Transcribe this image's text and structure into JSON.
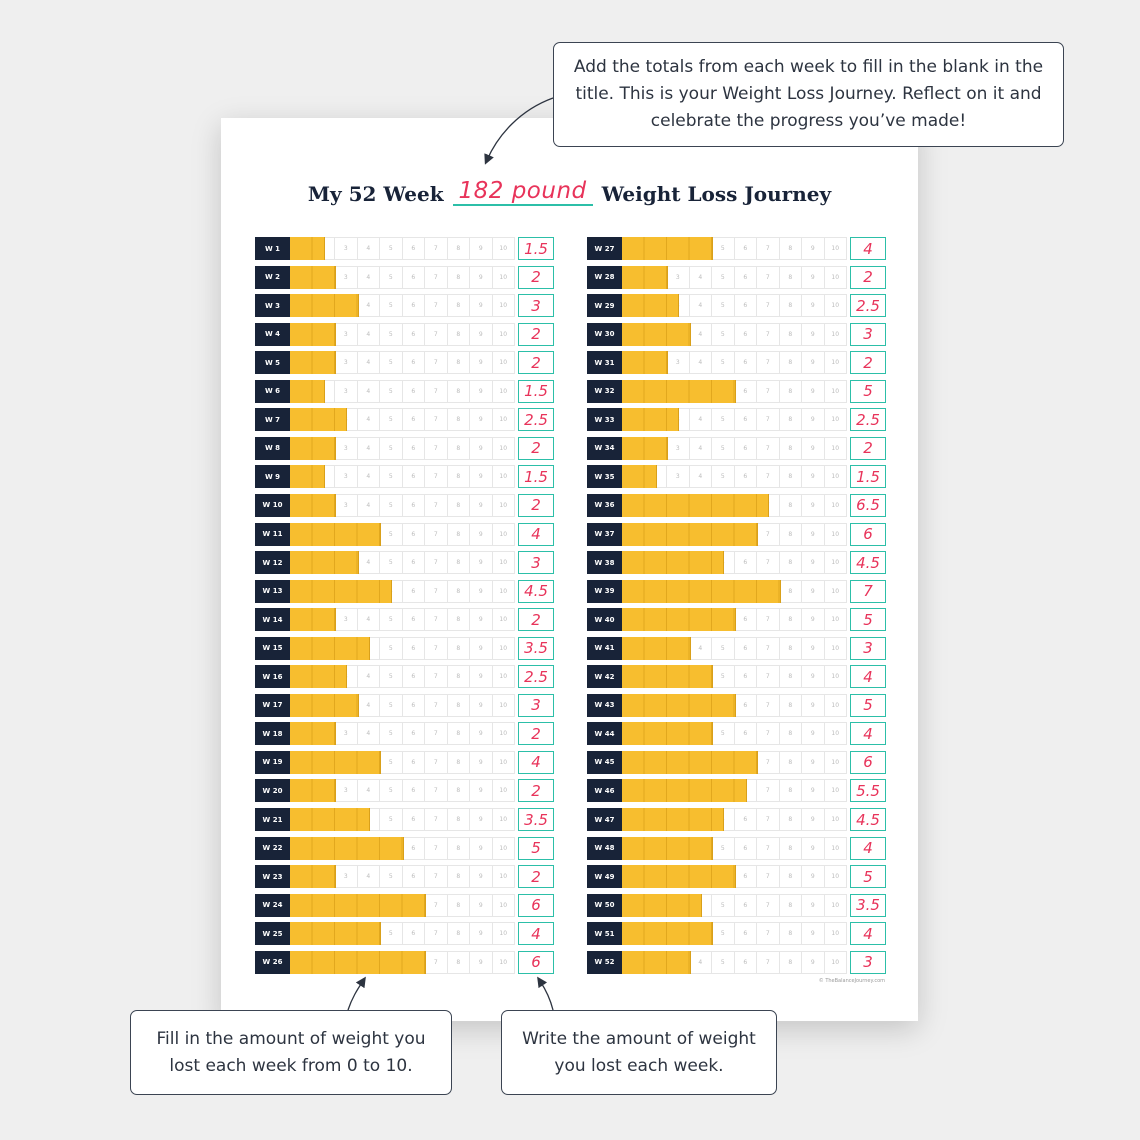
{
  "title": {
    "prefix": "My 52 Week",
    "blank_value": "182 pound",
    "suffix": "Weight Loss Journey"
  },
  "callouts": {
    "top": "Add the totals from each week to fill in the blank in the title. This is your Weight Loss Journey. Reflect on it and celebrate the progress you’ve made!",
    "bottom_left": "Fill in the amount of weight you lost each week from 0 to 10.",
    "bottom_right": "Write the amount of weight you lost each week."
  },
  "copyright": "© TheBalanceJourney.com",
  "chart_data": {
    "type": "bar",
    "scale_ticks": [
      "1",
      "2",
      "3",
      "4",
      "5",
      "6",
      "7",
      "8",
      "9",
      "10"
    ],
    "xlim": [
      0,
      10
    ],
    "categories": [
      "W 1",
      "W 2",
      "W 3",
      "W 4",
      "W 5",
      "W 6",
      "W 7",
      "W 8",
      "W 9",
      "W 10",
      "W 11",
      "W 12",
      "W 13",
      "W 14",
      "W 15",
      "W 16",
      "W 17",
      "W 18",
      "W 19",
      "W 20",
      "W 21",
      "W 22",
      "W 23",
      "W 24",
      "W 25",
      "W 26",
      "W 27",
      "W 28",
      "W 29",
      "W 30",
      "W 31",
      "W 32",
      "W 33",
      "W 34",
      "W 35",
      "W 36",
      "W 37",
      "W 38",
      "W 39",
      "W 40",
      "W 41",
      "W 42",
      "W 43",
      "W 44",
      "W 45",
      "W 46",
      "W 47",
      "W 48",
      "W 49",
      "W 50",
      "W 51",
      "W 52"
    ],
    "values": [
      1.5,
      2,
      3,
      2,
      2,
      1.5,
      2.5,
      2,
      1.5,
      2,
      4,
      3,
      4.5,
      2,
      3.5,
      2.5,
      3,
      2,
      4,
      2,
      3.5,
      5,
      2,
      6,
      4,
      6,
      4,
      2,
      2.5,
      3,
      2,
      5,
      2.5,
      2,
      1.5,
      6.5,
      6,
      4.5,
      7,
      5,
      3,
      4,
      5,
      4,
      6,
      5.5,
      4.5,
      4,
      5,
      3.5,
      4,
      3
    ],
    "value_labels": [
      "1.5",
      "2",
      "3",
      "2",
      "2",
      "1.5",
      "2.5",
      "2",
      "1.5",
      "2",
      "4",
      "3",
      "4.5",
      "2",
      "3.5",
      "2.5",
      "3",
      "2",
      "4",
      "2",
      "3.5",
      "5",
      "2",
      "6",
      "4",
      "6",
      "4",
      "2",
      "2.5",
      "3",
      "2",
      "5",
      "2.5",
      "2",
      "1.5",
      "6.5",
      "6",
      "4.5",
      "7",
      "5",
      "3",
      "4",
      "5",
      "4",
      "6",
      "5.5",
      "4.5",
      "4",
      "5",
      "3.5",
      "4",
      "3"
    ],
    "colors": {
      "fill": "#f7be2f",
      "week_label_bg": "#182338",
      "total_border": "#2cbfa8",
      "handwriting": "#e8335a"
    }
  }
}
